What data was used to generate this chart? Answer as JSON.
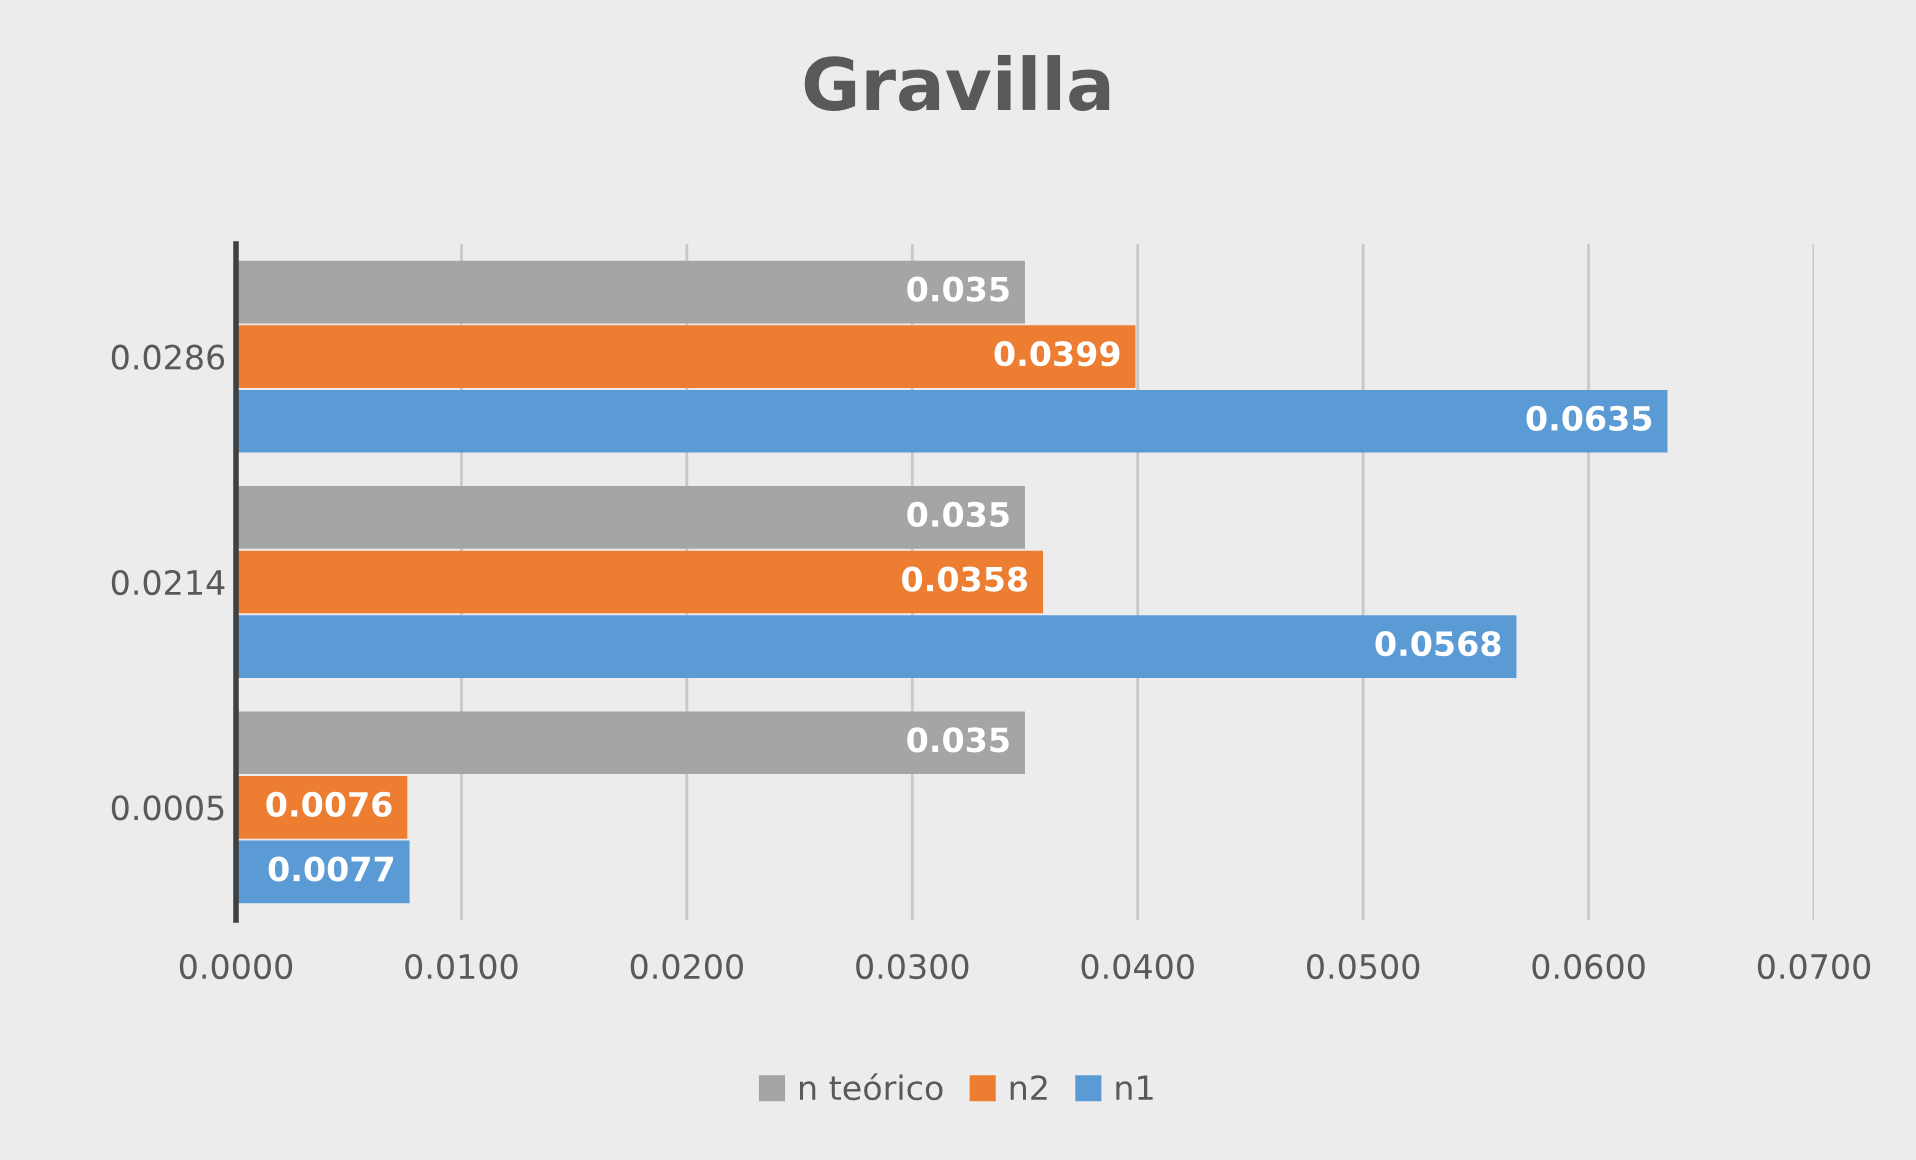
{
  "chart_data": {
    "type": "bar",
    "orientation": "horizontal",
    "title": "Gravilla",
    "categories": [
      "0.0286",
      "0.0214",
      "0.0005"
    ],
    "series": [
      {
        "name": "n teórico",
        "color": "#a5a5a5",
        "values": [
          0.035,
          0.035,
          0.035
        ]
      },
      {
        "name": "n2",
        "color": "#ed7d31",
        "values": [
          0.0399,
          0.0358,
          0.0076
        ]
      },
      {
        "name": "n1",
        "color": "#5b9bd5",
        "values": [
          0.0635,
          0.0568,
          0.0077
        ]
      }
    ],
    "xlim": [
      0,
      0.07
    ],
    "xticks": [
      {
        "value": 0,
        "label": "0.0000"
      },
      {
        "value": 0.01,
        "label": "0.0100"
      },
      {
        "value": 0.02,
        "label": "0.0200"
      },
      {
        "value": 0.03,
        "label": "0.0300"
      },
      {
        "value": 0.04,
        "label": "0.0400"
      },
      {
        "value": 0.05,
        "label": "0.0500"
      },
      {
        "value": 0.06,
        "label": "0.0600"
      },
      {
        "value": 0.07,
        "label": "0.0700"
      }
    ],
    "grid": "x",
    "legend": "bottom",
    "data_labels": true
  }
}
